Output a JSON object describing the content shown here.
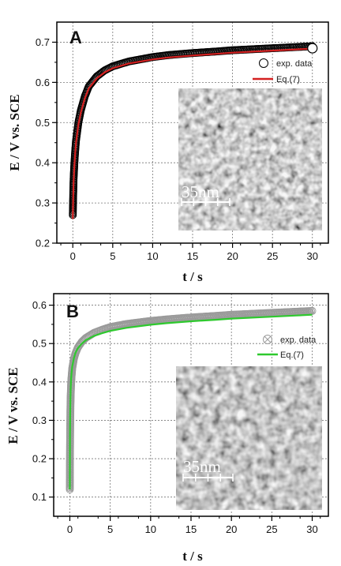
{
  "chart_data": [
    {
      "type": "scatter",
      "panel_label": "A",
      "xlabel": "t / s",
      "ylabel": "E / V vs. SCE",
      "xlim": [
        -2,
        32
      ],
      "ylim": [
        0.2,
        0.75
      ],
      "xticks": [
        0,
        5,
        10,
        15,
        20,
        25,
        30
      ],
      "yticks": [
        0.2,
        0.3,
        0.4,
        0.5,
        0.6,
        0.7
      ],
      "grid": true,
      "legend_position": "top-right",
      "series": [
        {
          "name": "exp. data",
          "kind": "markers",
          "marker": "open-circle",
          "color": "#000000",
          "x": [
            0,
            0.02,
            0.05,
            0.1,
            0.15,
            0.2,
            0.3,
            0.4,
            0.5,
            0.7,
            1,
            1.5,
            2,
            3,
            4,
            5,
            7,
            10,
            12,
            15,
            18,
            20,
            22,
            25,
            28,
            30
          ],
          "y": [
            0.27,
            0.29,
            0.32,
            0.36,
            0.38,
            0.4,
            0.43,
            0.455,
            0.47,
            0.5,
            0.53,
            0.565,
            0.59,
            0.615,
            0.63,
            0.64,
            0.652,
            0.663,
            0.668,
            0.673,
            0.677,
            0.68,
            0.682,
            0.685,
            0.688,
            0.69
          ]
        },
        {
          "name": "Eq.(7)",
          "kind": "line",
          "color": "#d42020",
          "x": [
            0,
            0.02,
            0.05,
            0.1,
            0.15,
            0.2,
            0.3,
            0.4,
            0.5,
            0.7,
            1,
            1.5,
            2,
            3,
            4,
            5,
            7,
            10,
            12,
            15,
            18,
            20,
            22,
            25,
            28,
            30
          ],
          "y": [
            0.26,
            0.28,
            0.31,
            0.35,
            0.375,
            0.395,
            0.425,
            0.45,
            0.465,
            0.495,
            0.525,
            0.56,
            0.585,
            0.61,
            0.625,
            0.635,
            0.647,
            0.657,
            0.662,
            0.667,
            0.671,
            0.674,
            0.676,
            0.679,
            0.682,
            0.684
          ]
        }
      ],
      "end_marker": {
        "x": 30,
        "y": 0.685
      },
      "inset": {
        "scale_label": "35nm",
        "scale_ticks": 5
      }
    },
    {
      "type": "scatter",
      "panel_label": "B",
      "xlabel": "t / s",
      "ylabel": "E / V vs. SCE",
      "xlim": [
        -2,
        32
      ],
      "ylim": [
        0.05,
        0.63
      ],
      "xticks": [
        0,
        5,
        10,
        15,
        20,
        25,
        30
      ],
      "yticks": [
        0.1,
        0.2,
        0.3,
        0.4,
        0.5,
        0.6
      ],
      "grid": true,
      "legend_position": "top-right",
      "series": [
        {
          "name": "exp. data",
          "kind": "markers",
          "marker": "crossed-circle",
          "color": "#9a9a9a",
          "x": [
            0,
            0.01,
            0.02,
            0.04,
            0.06,
            0.08,
            0.1,
            0.15,
            0.2,
            0.3,
            0.5,
            0.7,
            1,
            1.5,
            2,
            3,
            4,
            5,
            7,
            10,
            12,
            15,
            18,
            20,
            22,
            25,
            28,
            30
          ],
          "y": [
            0.12,
            0.18,
            0.22,
            0.27,
            0.31,
            0.34,
            0.36,
            0.39,
            0.41,
            0.435,
            0.46,
            0.475,
            0.49,
            0.505,
            0.515,
            0.528,
            0.536,
            0.543,
            0.551,
            0.559,
            0.563,
            0.568,
            0.572,
            0.575,
            0.577,
            0.58,
            0.583,
            0.585
          ]
        },
        {
          "name": "Eq.(7)",
          "kind": "line",
          "color": "#2ec92e",
          "x": [
            0,
            0.01,
            0.02,
            0.04,
            0.06,
            0.08,
            0.1,
            0.15,
            0.2,
            0.3,
            0.5,
            0.7,
            1,
            1.5,
            2,
            3,
            4,
            5,
            7,
            10,
            12,
            15,
            18,
            20,
            22,
            25,
            28,
            30
          ],
          "y": [
            0.12,
            0.2,
            0.26,
            0.31,
            0.34,
            0.36,
            0.38,
            0.405,
            0.42,
            0.44,
            0.462,
            0.476,
            0.488,
            0.5,
            0.509,
            0.52,
            0.527,
            0.533,
            0.541,
            0.549,
            0.553,
            0.558,
            0.562,
            0.565,
            0.567,
            0.57,
            0.573,
            0.575
          ]
        }
      ],
      "inset": {
        "scale_label": "35nm",
        "scale_ticks": 5
      }
    }
  ]
}
